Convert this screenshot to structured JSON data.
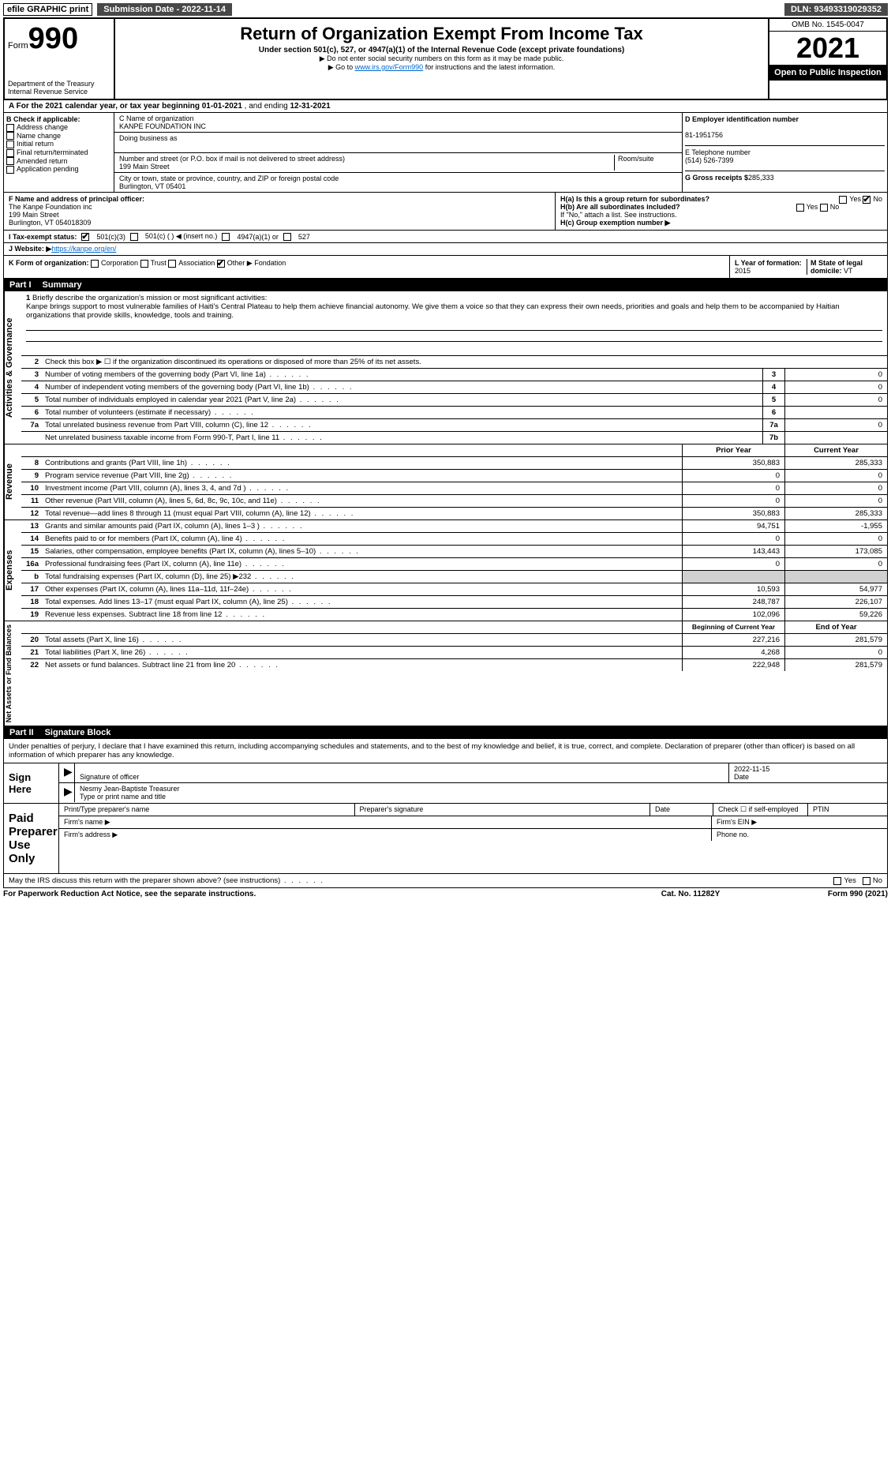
{
  "topbar": {
    "efile": "efile GRAPHIC print",
    "submission": "Submission Date - 2022-11-14",
    "dln": "DLN: 93493319029352"
  },
  "header": {
    "form_prefix": "Form",
    "form_num": "990",
    "dept": "Department of the Treasury",
    "irs": "Internal Revenue Service",
    "title": "Return of Organization Exempt From Income Tax",
    "sub": "Under section 501(c), 527, or 4947(a)(1) of the Internal Revenue Code (except private foundations)",
    "note1": "▶ Do not enter social security numbers on this form as it may be made public.",
    "note2_pre": "▶ Go to ",
    "note2_link": "www.irs.gov/Form990",
    "note2_post": " for instructions and the latest information.",
    "omb": "OMB No. 1545-0047",
    "year": "2021",
    "open": "Open to Public Inspection"
  },
  "period": {
    "label_a": "A For the 2021 calendar year, or tax year beginning ",
    "begin": "01-01-2021",
    "mid": " , and ending ",
    "end": "12-31-2021"
  },
  "section_b": {
    "b_label": "B Check if applicable:",
    "opts": [
      "Address change",
      "Name change",
      "Initial return",
      "Final return/terminated",
      "Amended return",
      "Application pending"
    ],
    "c_label": "C Name of organization",
    "org": "KANPE FOUNDATION INC",
    "dba_label": "Doing business as",
    "addr_label": "Number and street (or P.O. box if mail is not delivered to street address)",
    "room_label": "Room/suite",
    "addr": "199 Main Street",
    "city_label": "City or town, state or province, country, and ZIP or foreign postal code",
    "city": "Burlington, VT  05401",
    "d_label": "D Employer identification number",
    "ein": "81-1951756",
    "e_label": "E Telephone number",
    "phone": "(514) 526-7399",
    "g_label": "G Gross receipts $",
    "gross": "285,333"
  },
  "officer": {
    "f_label": "F Name and address of principal officer:",
    "name": "The Kanpe Foundation inc",
    "addr1": "199 Main Street",
    "addr2": "Burlington, VT  054018309",
    "ha_label": "H(a)  Is this a group return for subordinates?",
    "hb_label": "H(b)  Are all subordinates included?",
    "hb_note": "If \"No,\" attach a list. See instructions.",
    "hc_label": "H(c)  Group exemption number ▶",
    "yes": "Yes",
    "no": "No"
  },
  "tax_status": {
    "i_label": "I  Tax-exempt status:",
    "s1": "501(c)(3)",
    "s2": "501(c) (   ) ◀ (insert no.)",
    "s3": "4947(a)(1) or",
    "s4": "527"
  },
  "website": {
    "j_label": "J  Website: ▶ ",
    "url": "https://kanpe.org/en/"
  },
  "korg": {
    "k_label": "K Form of organization:",
    "opts": [
      "Corporation",
      "Trust",
      "Association",
      "Other ▶"
    ],
    "other_val": "Fondation",
    "l_label": "L Year of formation: ",
    "l_val": "2015",
    "m_label": "M State of legal domicile: ",
    "m_val": "VT"
  },
  "part1": {
    "num": "Part I",
    "title": "Summary"
  },
  "briefly": {
    "num": "1",
    "label": "Briefly describe the organization's mission or most significant activities:",
    "text": "Kanpe brings support to most vulnerable families of Haiti's Central Plateau to help them achieve financial autonomy. We give them a voice so that they can express their own needs, priorities and goals and help them to be accompanied by Haitian organizations that provide skills, knowledge, tools and training."
  },
  "lines_gov": [
    {
      "n": "2",
      "t": "Check this box ▶ ☐ if the organization discontinued its operations or disposed of more than 25% of its net assets.",
      "box": "",
      "v": ""
    },
    {
      "n": "3",
      "t": "Number of voting members of the governing body (Part VI, line 1a)",
      "box": "3",
      "v": "0"
    },
    {
      "n": "4",
      "t": "Number of independent voting members of the governing body (Part VI, line 1b)",
      "box": "4",
      "v": "0"
    },
    {
      "n": "5",
      "t": "Total number of individuals employed in calendar year 2021 (Part V, line 2a)",
      "box": "5",
      "v": "0"
    },
    {
      "n": "6",
      "t": "Total number of volunteers (estimate if necessary)",
      "box": "6",
      "v": ""
    },
    {
      "n": "7a",
      "t": "Total unrelated business revenue from Part VIII, column (C), line 12",
      "box": "7a",
      "v": "0"
    },
    {
      "n": "",
      "t": "Net unrelated business taxable income from Form 990-T, Part I, line 11",
      "box": "7b",
      "v": ""
    }
  ],
  "col_hdr": {
    "prior": "Prior Year",
    "current": "Current Year"
  },
  "lines_rev": [
    {
      "n": "8",
      "t": "Contributions and grants (Part VIII, line 1h)",
      "p": "350,883",
      "c": "285,333"
    },
    {
      "n": "9",
      "t": "Program service revenue (Part VIII, line 2g)",
      "p": "0",
      "c": "0"
    },
    {
      "n": "10",
      "t": "Investment income (Part VIII, column (A), lines 3, 4, and 7d )",
      "p": "0",
      "c": "0"
    },
    {
      "n": "11",
      "t": "Other revenue (Part VIII, column (A), lines 5, 6d, 8c, 9c, 10c, and 11e)",
      "p": "0",
      "c": "0"
    },
    {
      "n": "12",
      "t": "Total revenue—add lines 8 through 11 (must equal Part VIII, column (A), line 12)",
      "p": "350,883",
      "c": "285,333"
    }
  ],
  "lines_exp": [
    {
      "n": "13",
      "t": "Grants and similar amounts paid (Part IX, column (A), lines 1–3 )",
      "p": "94,751",
      "c": "-1,955"
    },
    {
      "n": "14",
      "t": "Benefits paid to or for members (Part IX, column (A), line 4)",
      "p": "0",
      "c": "0"
    },
    {
      "n": "15",
      "t": "Salaries, other compensation, employee benefits (Part IX, column (A), lines 5–10)",
      "p": "143,443",
      "c": "173,085"
    },
    {
      "n": "16a",
      "t": "Professional fundraising fees (Part IX, column (A), line 11e)",
      "p": "0",
      "c": "0"
    },
    {
      "n": "b",
      "t": "Total fundraising expenses (Part IX, column (D), line 25) ▶232",
      "p": "shade",
      "c": "shade"
    },
    {
      "n": "17",
      "t": "Other expenses (Part IX, column (A), lines 11a–11d, 11f–24e)",
      "p": "10,593",
      "c": "54,977"
    },
    {
      "n": "18",
      "t": "Total expenses. Add lines 13–17 (must equal Part IX, column (A), line 25)",
      "p": "248,787",
      "c": "226,107"
    },
    {
      "n": "19",
      "t": "Revenue less expenses. Subtract line 18 from line 12",
      "p": "102,096",
      "c": "59,226"
    }
  ],
  "col_hdr2": {
    "prior": "Beginning of Current Year",
    "current": "End of Year"
  },
  "lines_net": [
    {
      "n": "20",
      "t": "Total assets (Part X, line 16)",
      "p": "227,216",
      "c": "281,579"
    },
    {
      "n": "21",
      "t": "Total liabilities (Part X, line 26)",
      "p": "4,268",
      "c": "0"
    },
    {
      "n": "22",
      "t": "Net assets or fund balances. Subtract line 21 from line 20",
      "p": "222,948",
      "c": "281,579"
    }
  ],
  "vtabs": {
    "gov": "Activities & Governance",
    "rev": "Revenue",
    "exp": "Expenses",
    "net": "Net Assets or Fund Balances"
  },
  "part2": {
    "num": "Part II",
    "title": "Signature Block"
  },
  "sig_text": "Under penalties of perjury, I declare that I have examined this return, including accompanying schedules and statements, and to the best of my knowledge and belief, it is true, correct, and complete. Declaration of preparer (other than officer) is based on all information of which preparer has any knowledge.",
  "sign": {
    "here": "Sign Here",
    "sig_label": "Signature of officer",
    "date": "2022-11-15",
    "date_label": "Date",
    "name": "Nesmy Jean-Baptiste  Treasurer",
    "name_label": "Type or print name and title"
  },
  "paid": {
    "title": "Paid Preparer Use Only",
    "h1": "Print/Type preparer's name",
    "h2": "Preparer's signature",
    "h3": "Date",
    "h4_pre": "Check ☐ if self-employed",
    "h5": "PTIN",
    "firm_name": "Firm's name   ▶",
    "firm_ein": "Firm's EIN ▶",
    "firm_addr": "Firm's address ▶",
    "phone": "Phone no."
  },
  "discuss": {
    "q": "May the IRS discuss this return with the preparer shown above? (see instructions)",
    "yes": "Yes",
    "no": "No"
  },
  "footer": {
    "l": "For Paperwork Reduction Act Notice, see the separate instructions.",
    "c": "Cat. No. 11282Y",
    "r": "Form 990 (2021)"
  }
}
